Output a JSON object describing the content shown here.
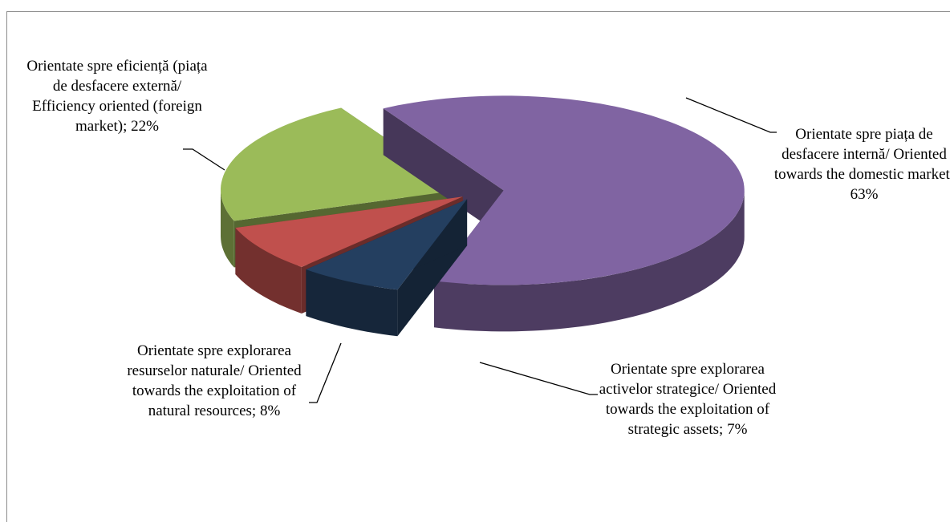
{
  "chart_data": {
    "type": "pie3d",
    "categories": [
      "Orientate spre piața de desfacere internă/ Oriented towards the domestic market;",
      "Orientate spre explorarea activelor strategice/ Oriented towards the exploitation of strategic assets;",
      "Orientate spre explorarea resurselor naturale/ Oriented towards the exploitation of natural resources;",
      "Orientate spre eficiență (piața de desfacere externă/ Efficiency oriented (foreign market);"
    ],
    "values": [
      63,
      7,
      8,
      22
    ],
    "value_labels": [
      "63%",
      "7%",
      "8%",
      "22%"
    ],
    "colors": [
      "#8064a2",
      "#243f60",
      "#c0504d",
      "#9bbb59"
    ]
  }
}
